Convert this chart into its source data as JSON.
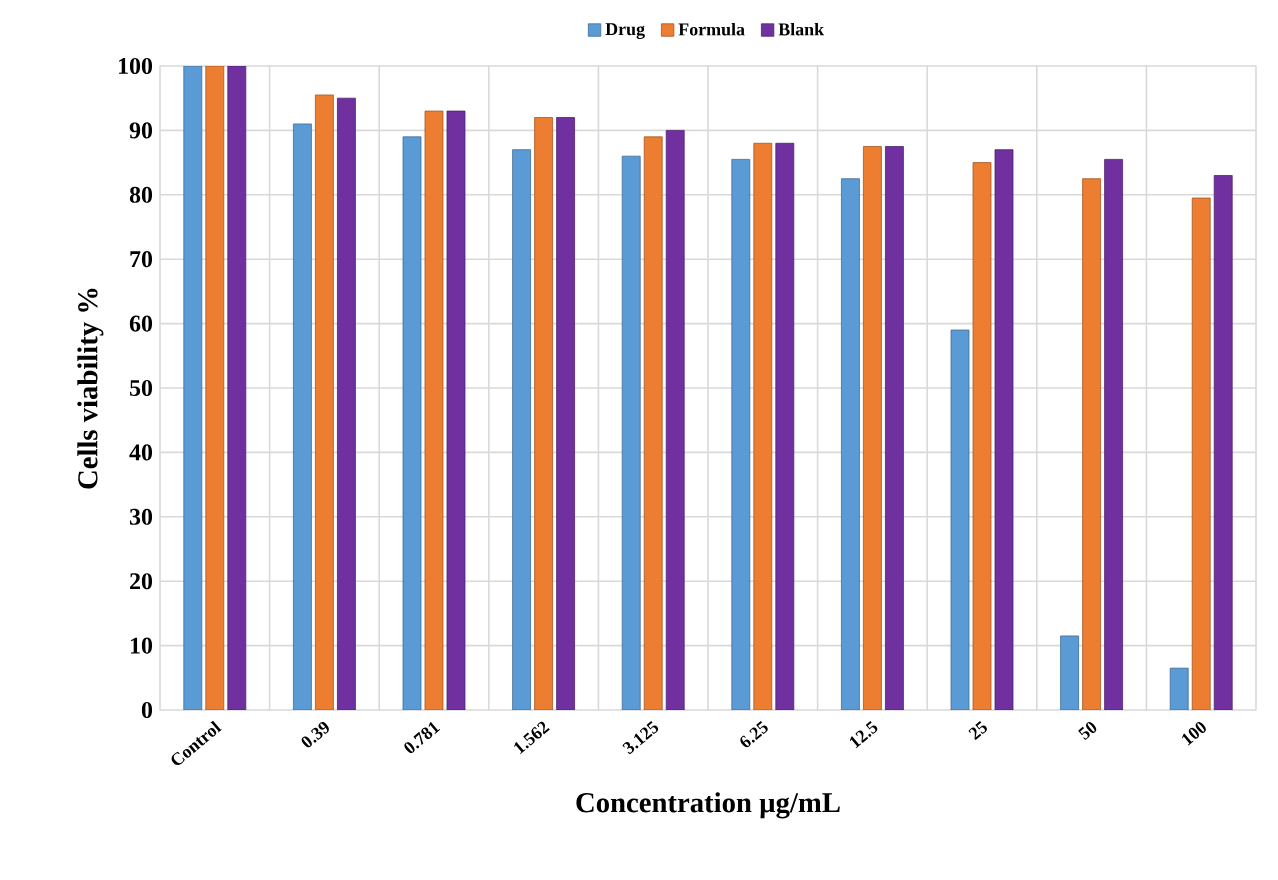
{
  "chart_data": {
    "type": "bar",
    "xlabel": "Concentration µg/mL",
    "ylabel": "Cells  viability  %",
    "categories": [
      "Control",
      "0.39",
      "0.781",
      "1.562",
      "3.125",
      "6.25",
      "12.5",
      "25",
      "50",
      "100"
    ],
    "series": [
      {
        "name": "Drug",
        "color": "#5b9bd5",
        "values": [
          100,
          91,
          89,
          87,
          86,
          85.5,
          82.5,
          59,
          11.5,
          6.5
        ]
      },
      {
        "name": "Formula",
        "color": "#ed7d31",
        "values": [
          100,
          95.5,
          93,
          92,
          89,
          88,
          87.5,
          85,
          82.5,
          79.5
        ]
      },
      {
        "name": "Blank",
        "color": "#7030a0",
        "values": [
          100,
          95,
          93,
          92,
          90,
          88,
          87.5,
          87,
          85.5,
          83
        ]
      }
    ],
    "ylim": [
      0,
      100
    ],
    "yticks": [
      0,
      10,
      20,
      30,
      40,
      50,
      60,
      70,
      80,
      90,
      100
    ],
    "grid": true,
    "legend": "top"
  }
}
